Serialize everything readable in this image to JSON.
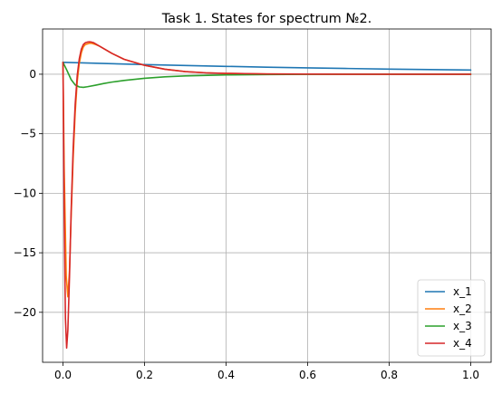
{
  "chart_data": {
    "type": "line",
    "title": "Task 1. States for spectrum №2.",
    "xlabel": "",
    "ylabel": "",
    "xlim": [
      -0.05,
      1.05
    ],
    "ylim": [
      -24.2,
      3.8
    ],
    "xticks": [
      0.0,
      0.2,
      0.4,
      0.6,
      0.8,
      1.0
    ],
    "xtick_labels": [
      "0.0",
      "0.2",
      "0.4",
      "0.6",
      "0.8",
      "1.0"
    ],
    "yticks": [
      0,
      -5,
      -10,
      -15,
      -20
    ],
    "ytick_labels": [
      "0",
      "−5",
      "−10",
      "−15",
      "−20"
    ],
    "grid": true,
    "legend_position": "bottom-right",
    "series": [
      {
        "name": "x_1",
        "color": "#1f77b4",
        "x": [
          0,
          0.1,
          0.2,
          0.3,
          0.4,
          0.5,
          0.6,
          0.7,
          0.8,
          0.9,
          1.0
        ],
        "y": [
          1.0,
          0.9,
          0.81,
          0.73,
          0.66,
          0.59,
          0.53,
          0.48,
          0.43,
          0.39,
          0.35
        ]
      },
      {
        "name": "x_2",
        "color": "#ff7f0e",
        "x": [
          0,
          0.003,
          0.008,
          0.012,
          0.016,
          0.02,
          0.025,
          0.03,
          0.035,
          0.04,
          0.045,
          0.05,
          0.055,
          0.06,
          0.065,
          0.07,
          0.075,
          0.08,
          0.09,
          0.1,
          0.12,
          0.15,
          0.2,
          0.25,
          0.3,
          0.35,
          0.4,
          0.5,
          0.6,
          0.7,
          0.8,
          0.9,
          1.0
        ],
        "y": [
          1.0,
          -8.0,
          -17.0,
          -18.7,
          -16.5,
          -12.0,
          -7.0,
          -3.2,
          -0.6,
          0.9,
          1.8,
          2.3,
          2.5,
          2.55,
          2.6,
          2.6,
          2.55,
          2.5,
          2.35,
          2.15,
          1.75,
          1.25,
          0.75,
          0.42,
          0.22,
          0.12,
          0.07,
          0.02,
          0.01,
          0.0,
          0.0,
          0.0,
          0.0
        ]
      },
      {
        "name": "x_3",
        "color": "#2ca02c",
        "x": [
          0,
          0.01,
          0.02,
          0.03,
          0.04,
          0.05,
          0.06,
          0.08,
          0.1,
          0.12,
          0.15,
          0.2,
          0.25,
          0.3,
          0.4,
          0.5,
          0.6,
          0.7,
          0.8,
          0.9,
          1.0
        ],
        "y": [
          1.0,
          0.3,
          -0.45,
          -0.9,
          -1.07,
          -1.1,
          -1.05,
          -0.92,
          -0.78,
          -0.66,
          -0.52,
          -0.34,
          -0.22,
          -0.14,
          -0.06,
          -0.03,
          -0.01,
          0.0,
          0.0,
          0.0,
          0.0
        ],
        "z": 1
      },
      {
        "name": "x_4",
        "color": "#d62728",
        "x": [
          0,
          0.003,
          0.006,
          0.009,
          0.012,
          0.016,
          0.02,
          0.025,
          0.03,
          0.035,
          0.04,
          0.045,
          0.05,
          0.055,
          0.06,
          0.065,
          0.07,
          0.075,
          0.08,
          0.09,
          0.1,
          0.12,
          0.15,
          0.2,
          0.25,
          0.3,
          0.35,
          0.4,
          0.5,
          0.6,
          0.7,
          0.8,
          0.9,
          1.0
        ],
        "y": [
          1.0,
          -12.0,
          -20.5,
          -23.0,
          -21.5,
          -17.0,
          -11.5,
          -6.2,
          -2.5,
          -0.1,
          1.3,
          2.1,
          2.5,
          2.65,
          2.7,
          2.72,
          2.7,
          2.65,
          2.55,
          2.35,
          2.15,
          1.75,
          1.25,
          0.75,
          0.42,
          0.22,
          0.12,
          0.07,
          0.02,
          0.01,
          0.0,
          0.0,
          0.0,
          0.0
        ]
      }
    ]
  }
}
